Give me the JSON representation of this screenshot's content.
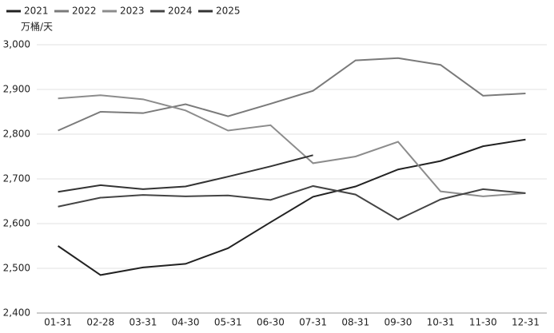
{
  "chart_data": {
    "type": "line",
    "y_label": "万桶/天",
    "categories": [
      "01-31",
      "02-28",
      "03-31",
      "04-30",
      "05-31",
      "06-30",
      "07-31",
      "08-31",
      "09-30",
      "10-31",
      "11-30",
      "12-31"
    ],
    "series": [
      {
        "name": "2021",
        "color": "#222222",
        "values": [
          2550,
          2485,
          2502,
          2510,
          2545,
          2603,
          2660,
          2683,
          2721,
          2740,
          2773,
          2788
        ]
      },
      {
        "name": "2022",
        "color": "#7a7a7a",
        "values": [
          2808,
          2850,
          2847,
          2867,
          2840,
          2868,
          2897,
          2965,
          2970,
          2955,
          2886,
          2891
        ]
      },
      {
        "name": "2023",
        "color": "#8c8c8c",
        "values": [
          2880,
          2887,
          2878,
          2853,
          2808,
          2820,
          2735,
          2750,
          2783,
          2672,
          2661,
          2668
        ]
      },
      {
        "name": "2024",
        "color": "#444444",
        "values": [
          2638,
          2658,
          2664,
          2661,
          2663,
          2653,
          2684,
          2665,
          2609,
          2654,
          2677,
          2668
        ]
      },
      {
        "name": "2025",
        "color": "#333333",
        "values": [
          2671,
          2686,
          2677,
          2683,
          2705,
          2728,
          2753,
          null,
          null,
          null,
          null,
          null
        ]
      }
    ],
    "ylim": [
      2400,
      3000
    ],
    "yticks": [
      {
        "value": 2400,
        "label": "2,400"
      },
      {
        "value": 2500,
        "label": "2,500"
      },
      {
        "value": 2600,
        "label": "2,600"
      },
      {
        "value": 2700,
        "label": "2,700"
      },
      {
        "value": 2800,
        "label": "2,800"
      },
      {
        "value": 2900,
        "label": "2,900"
      },
      {
        "value": 3000,
        "label": "3,000"
      }
    ],
    "grid": true,
    "legend": "top-left"
  }
}
